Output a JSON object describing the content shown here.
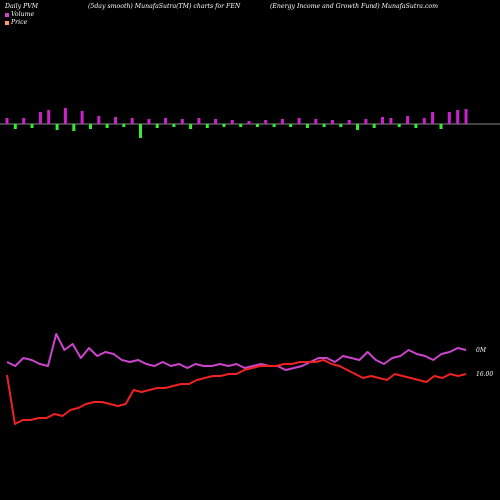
{
  "header": {
    "left": "Daily PVM",
    "mid1": "(5day smooth) MunafaSutra(TM) charts for FEN",
    "mid2": "",
    "right": "(Energy Income   and Growth Fund) MunafaSutra.com"
  },
  "legend": [
    {
      "label": "Volume",
      "color": "#cc44cc"
    },
    {
      "label": "Price",
      "color": "#ff9966"
    }
  ],
  "chart_data": {
    "type": "line",
    "colors": {
      "up_bar": "#cc22cc",
      "down_bar": "#33ee33",
      "volume_line": "#cc44cc",
      "price_line": "#ee2222",
      "axis": "#888888"
    },
    "bars": [
      {
        "d": "up",
        "h": 6
      },
      {
        "d": "down",
        "h": 5
      },
      {
        "d": "up",
        "h": 6
      },
      {
        "d": "down",
        "h": 4
      },
      {
        "d": "up",
        "h": 12
      },
      {
        "d": "up",
        "h": 14
      },
      {
        "d": "down",
        "h": 6
      },
      {
        "d": "up",
        "h": 16
      },
      {
        "d": "down",
        "h": 7
      },
      {
        "d": "up",
        "h": 13
      },
      {
        "d": "down",
        "h": 5
      },
      {
        "d": "up",
        "h": 8
      },
      {
        "d": "down",
        "h": 4
      },
      {
        "d": "up",
        "h": 7
      },
      {
        "d": "down",
        "h": 3
      },
      {
        "d": "up",
        "h": 6
      },
      {
        "d": "down",
        "h": 14
      },
      {
        "d": "up",
        "h": 5
      },
      {
        "d": "down",
        "h": 4
      },
      {
        "d": "up",
        "h": 6
      },
      {
        "d": "down",
        "h": 3
      },
      {
        "d": "up",
        "h": 5
      },
      {
        "d": "down",
        "h": 5
      },
      {
        "d": "up",
        "h": 6
      },
      {
        "d": "down",
        "h": 4
      },
      {
        "d": "up",
        "h": 5
      },
      {
        "d": "down",
        "h": 3
      },
      {
        "d": "up",
        "h": 4
      },
      {
        "d": "down",
        "h": 3
      },
      {
        "d": "up",
        "h": 3
      },
      {
        "d": "down",
        "h": 3
      },
      {
        "d": "up",
        "h": 4
      },
      {
        "d": "down",
        "h": 3
      },
      {
        "d": "up",
        "h": 5
      },
      {
        "d": "down",
        "h": 3
      },
      {
        "d": "up",
        "h": 6
      },
      {
        "d": "down",
        "h": 4
      },
      {
        "d": "up",
        "h": 5
      },
      {
        "d": "down",
        "h": 3
      },
      {
        "d": "up",
        "h": 4
      },
      {
        "d": "down",
        "h": 3
      },
      {
        "d": "up",
        "h": 4
      },
      {
        "d": "down",
        "h": 6
      },
      {
        "d": "up",
        "h": 5
      },
      {
        "d": "down",
        "h": 4
      },
      {
        "d": "up",
        "h": 7
      },
      {
        "d": "up",
        "h": 6
      },
      {
        "d": "down",
        "h": 3
      },
      {
        "d": "up",
        "h": 8
      },
      {
        "d": "down",
        "h": 4
      },
      {
        "d": "up",
        "h": 6
      },
      {
        "d": "up",
        "h": 12
      },
      {
        "d": "down",
        "h": 5
      },
      {
        "d": "up",
        "h": 12
      },
      {
        "d": "up",
        "h": 14
      },
      {
        "d": "up",
        "h": 15
      }
    ],
    "volume_series": [
      362,
      366,
      358,
      360,
      364,
      366,
      334,
      350,
      344,
      358,
      348,
      356,
      352,
      354,
      360,
      362,
      360,
      364,
      366,
      362,
      366,
      364,
      368,
      364,
      366,
      366,
      364,
      366,
      364,
      368,
      366,
      364,
      366,
      366,
      370,
      368,
      366,
      362,
      358,
      358,
      362,
      356,
      358,
      360,
      352,
      360,
      364,
      358,
      356,
      350,
      354,
      356,
      360,
      354,
      352,
      348,
      350
    ],
    "price_series": [
      375,
      424,
      420,
      420,
      418,
      418,
      414,
      416,
      410,
      408,
      404,
      402,
      402,
      404,
      406,
      404,
      390,
      392,
      390,
      388,
      388,
      386,
      384,
      384,
      380,
      378,
      376,
      376,
      374,
      374,
      370,
      368,
      366,
      366,
      366,
      364,
      364,
      362,
      362,
      362,
      360,
      364,
      366,
      370,
      374,
      378,
      376,
      378,
      380,
      374,
      376,
      378,
      380,
      382,
      376,
      378,
      374,
      376,
      374
    ],
    "right_labels": {
      "volume": "0M",
      "price": "16.00"
    }
  }
}
